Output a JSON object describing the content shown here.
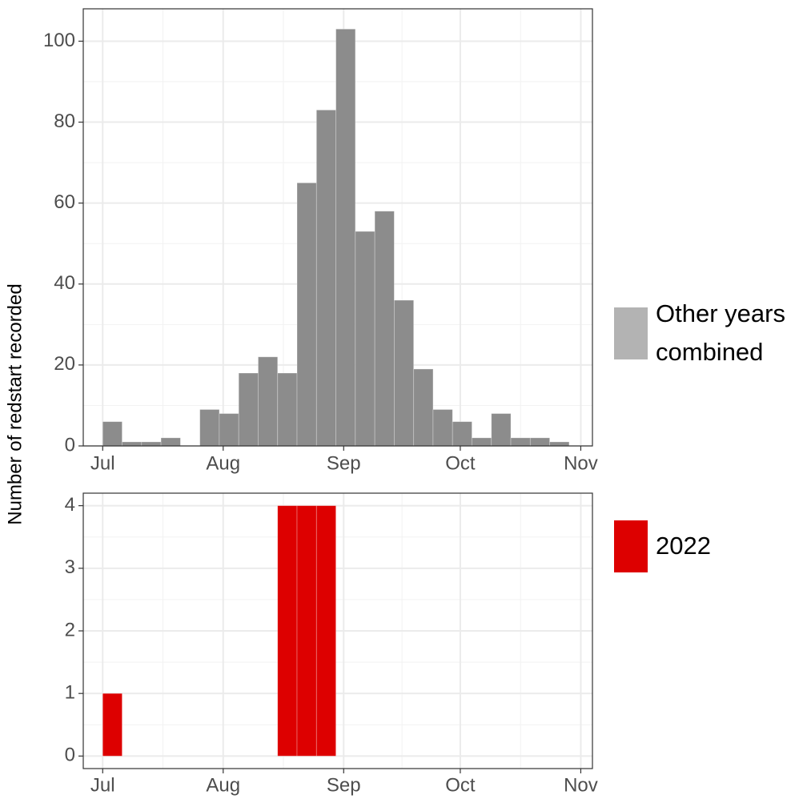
{
  "chart_data": [
    {
      "type": "bar",
      "name": "panel-other-years",
      "legend_entries": [
        {
          "label_lines": [
            "Other years",
            "combined"
          ],
          "color": "#b3b3b3"
        }
      ],
      "bar_color": "#8c8c8c",
      "xlabel": "",
      "ylabel": "Number of redstart recorded",
      "x_ticks": [
        "Jul",
        "Aug",
        "Sep",
        "Oct",
        "Nov"
      ],
      "y_ticks": [
        "0",
        "20",
        "40",
        "60",
        "80",
        "100"
      ],
      "ylim": [
        0,
        108
      ],
      "xlim": [
        "2022-06-26",
        "2022-11-04"
      ],
      "bin_days": 5,
      "bins": [
        {
          "start": "2022-07-01",
          "value": 6
        },
        {
          "start": "2022-07-06",
          "value": 1
        },
        {
          "start": "2022-07-11",
          "value": 1
        },
        {
          "start": "2022-07-16",
          "value": 2
        },
        {
          "start": "2022-07-21",
          "value": 0
        },
        {
          "start": "2022-07-26",
          "value": 9
        },
        {
          "start": "2022-07-31",
          "value": 8
        },
        {
          "start": "2022-08-05",
          "value": 18
        },
        {
          "start": "2022-08-10",
          "value": 22
        },
        {
          "start": "2022-08-15",
          "value": 18
        },
        {
          "start": "2022-08-20",
          "value": 65
        },
        {
          "start": "2022-08-25",
          "value": 83
        },
        {
          "start": "2022-08-30",
          "value": 103
        },
        {
          "start": "2022-09-04",
          "value": 53
        },
        {
          "start": "2022-09-09",
          "value": 58
        },
        {
          "start": "2022-09-14",
          "value": 36
        },
        {
          "start": "2022-09-19",
          "value": 19
        },
        {
          "start": "2022-09-24",
          "value": 9
        },
        {
          "start": "2022-09-29",
          "value": 6
        },
        {
          "start": "2022-10-04",
          "value": 2
        },
        {
          "start": "2022-10-09",
          "value": 8
        },
        {
          "start": "2022-10-14",
          "value": 2
        },
        {
          "start": "2022-10-19",
          "value": 2
        },
        {
          "start": "2022-10-24",
          "value": 1
        }
      ]
    },
    {
      "type": "bar",
      "name": "panel-2022",
      "legend_entries": [
        {
          "label_lines": [
            "2022"
          ],
          "color": "#dd0000"
        }
      ],
      "bar_color": "#dd0000",
      "xlabel": "",
      "ylabel": "Number of redstart recorded",
      "x_ticks": [
        "Jul",
        "Aug",
        "Sep",
        "Oct",
        "Nov"
      ],
      "y_ticks": [
        "0",
        "1",
        "2",
        "3",
        "4"
      ],
      "ylim": [
        -0.2,
        4.2
      ],
      "xlim": [
        "2022-06-26",
        "2022-11-04"
      ],
      "bin_days": 5,
      "bins": [
        {
          "start": "2022-07-01",
          "value": 1
        },
        {
          "start": "2022-08-15",
          "value": 4
        },
        {
          "start": "2022-08-20",
          "value": 4
        },
        {
          "start": "2022-08-25",
          "value": 4
        }
      ]
    }
  ]
}
